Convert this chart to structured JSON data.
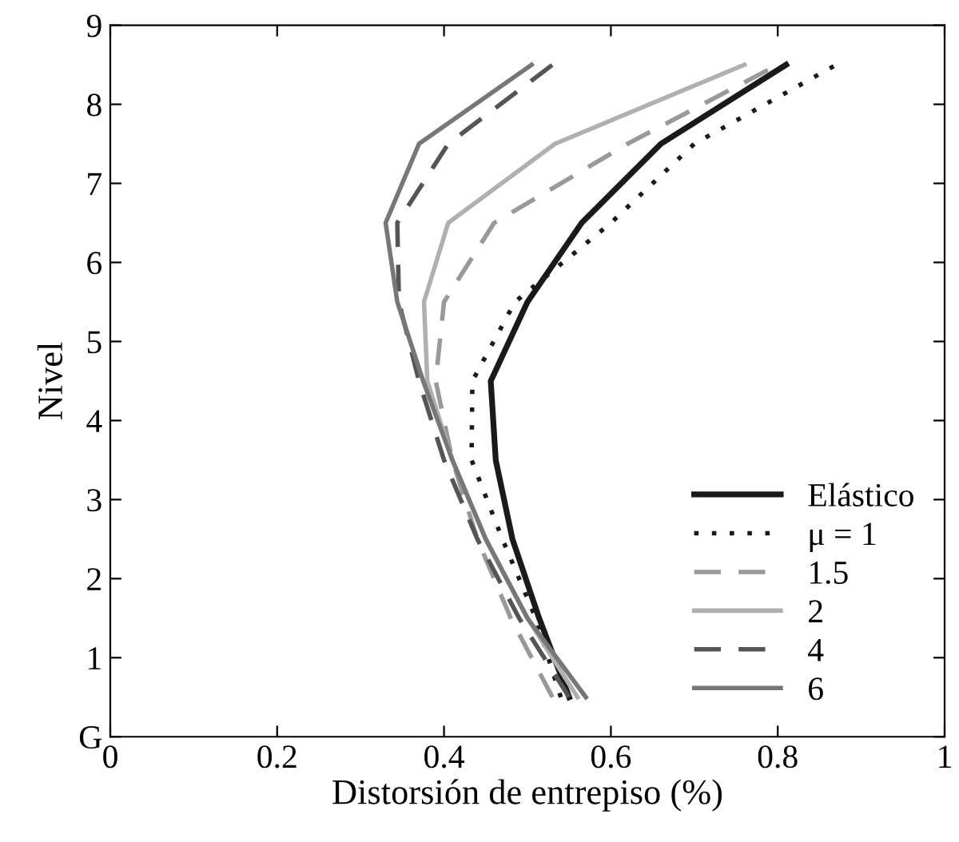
{
  "chart_data": {
    "type": "line",
    "xlabel": "Distorsión de entrepiso (%)",
    "ylabel": "Nivel",
    "x": [
      0.5,
      1.5,
      2.5,
      3.5,
      4.5,
      5.5,
      6.5,
      7.5,
      8.5
    ],
    "orientation": "horizontal",
    "xlim": [
      0,
      1
    ],
    "xticks": [
      0,
      0.2,
      0.4,
      0.6,
      0.8,
      1
    ],
    "ylim": [
      0,
      9
    ],
    "yticks": [
      {
        "value": 0,
        "label": "G"
      },
      1,
      2,
      3,
      4,
      5,
      6,
      7,
      8,
      9
    ],
    "grid": false,
    "legend": "bottom right",
    "marker": "none",
    "series": [
      {
        "name": "Elástico",
        "color": "#1a1a1a",
        "line_style": "solid",
        "values": [
          0.55,
          0.514,
          0.482,
          0.462,
          0.456,
          0.5,
          0.565,
          0.66,
          0.81
        ]
      },
      {
        "name": "μ = 1",
        "color": "#1a1a1a",
        "line_style": "dotted",
        "values": [
          0.54,
          0.51,
          0.47,
          0.433,
          0.434,
          0.485,
          0.6,
          0.7,
          0.87
        ]
      },
      {
        "name": "1.5",
        "color": "#999999",
        "line_style": "dashed",
        "values": [
          0.53,
          0.48,
          0.44,
          0.41,
          0.39,
          0.4,
          0.46,
          0.62,
          0.8
        ]
      },
      {
        "name": "2",
        "color": "#b0b0b0",
        "line_style": "solid",
        "values": [
          0.56,
          0.5,
          0.45,
          0.41,
          0.38,
          0.376,
          0.405,
          0.533,
          0.76
        ]
      },
      {
        "name": "4",
        "color": "#555555",
        "line_style": "dashed",
        "values": [
          0.55,
          0.49,
          0.44,
          0.4,
          0.37,
          0.346,
          0.344,
          0.405,
          0.53
        ]
      },
      {
        "name": "6",
        "color": "#777777",
        "line_style": "solid",
        "values": [
          0.57,
          0.5,
          0.45,
          0.41,
          0.375,
          0.344,
          0.33,
          0.37,
          0.505
        ]
      }
    ]
  }
}
